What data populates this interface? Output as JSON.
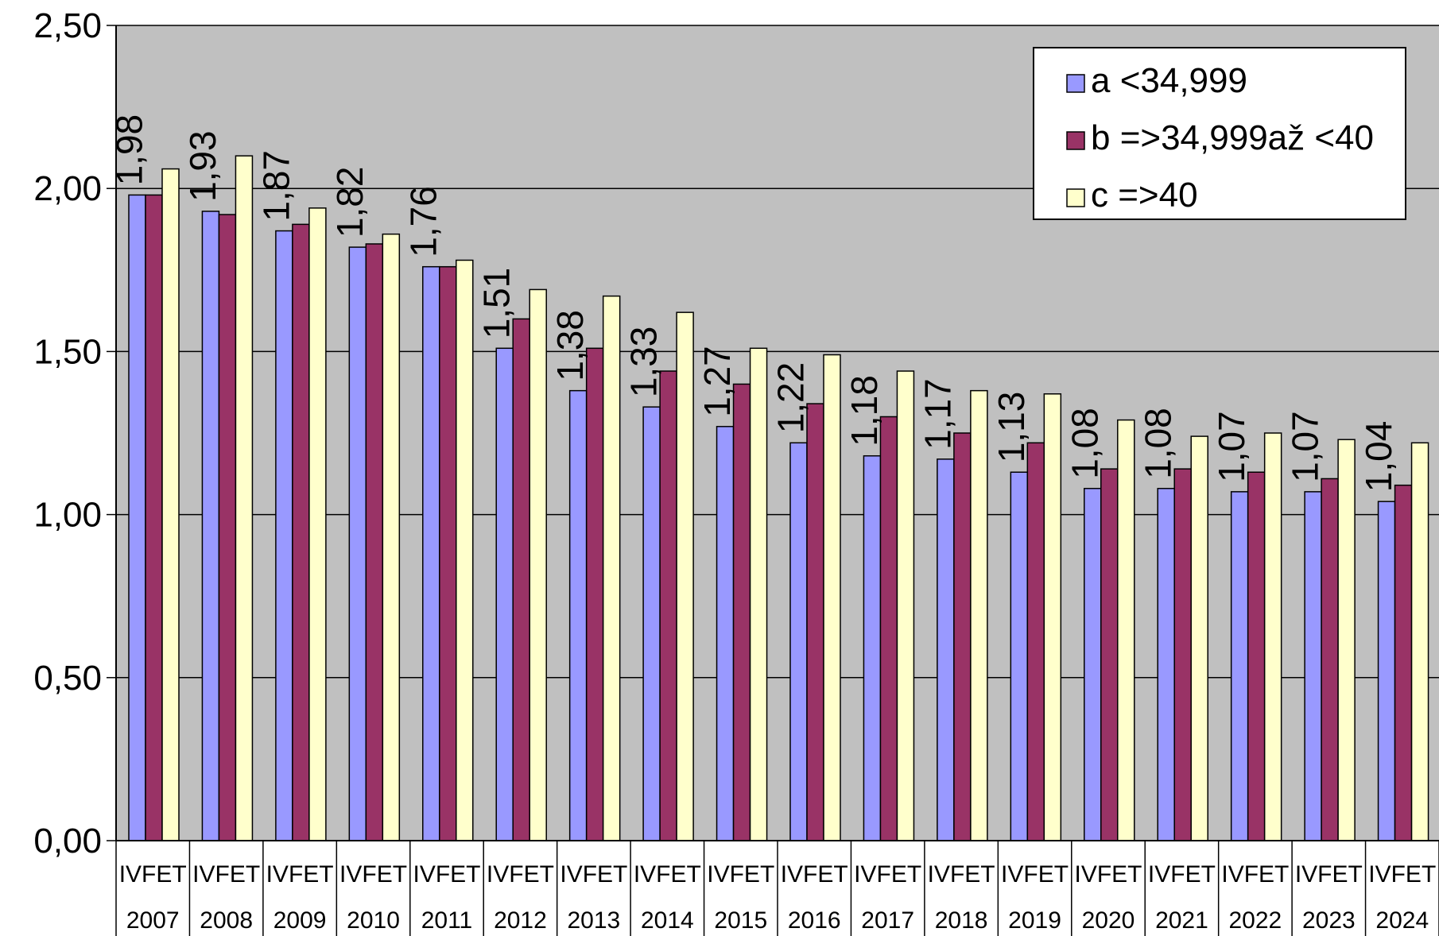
{
  "chart_data": {
    "type": "bar",
    "title": "",
    "xlabel": "",
    "ylabel": "",
    "ylim": [
      0,
      2.5
    ],
    "y_ticks": [
      "0,00",
      "0,50",
      "1,00",
      "1,50",
      "2,00",
      "2,50"
    ],
    "y_tick_values": [
      0,
      0.5,
      1.0,
      1.5,
      2.0,
      2.5
    ],
    "grid": true,
    "legend_position": "top-right",
    "category_labels_top": [
      "IVFET",
      "IVFET",
      "IVFET",
      "IVFET",
      "IVFET",
      "IVFET",
      "IVFET",
      "IVFET",
      "IVFET",
      "IVFET",
      "IVFET",
      "IVFET",
      "IVFET",
      "IVFET",
      "IVFET",
      "IVFET",
      "IVFET",
      "IVFET"
    ],
    "categories": [
      "2007",
      "2008",
      "2009",
      "2010",
      "2011",
      "2012",
      "2013",
      "2014",
      "2015",
      "2016",
      "2017",
      "2018",
      "2019",
      "2020",
      "2021",
      "2022",
      "2023",
      "2024"
    ],
    "series": [
      {
        "name": "a <34,999",
        "color": "#9999ff",
        "values": [
          1.98,
          1.93,
          1.87,
          1.82,
          1.76,
          1.51,
          1.38,
          1.33,
          1.27,
          1.22,
          1.18,
          1.17,
          1.13,
          1.08,
          1.08,
          1.07,
          1.07,
          1.04
        ],
        "data_labels": [
          "1,98",
          "1,93",
          "1,87",
          "1,82",
          "1,76",
          "1,51",
          "1,38",
          "1,33",
          "1,27",
          "1,22",
          "1,18",
          "1,17",
          "1,13",
          "1,08",
          "1,08",
          "1,07",
          "1,07",
          "1,04"
        ]
      },
      {
        "name": "b =>34,999až <40",
        "color": "#993366",
        "values": [
          1.98,
          1.92,
          1.89,
          1.83,
          1.76,
          1.6,
          1.51,
          1.44,
          1.4,
          1.34,
          1.3,
          1.25,
          1.22,
          1.14,
          1.14,
          1.13,
          1.11,
          1.09
        ]
      },
      {
        "name": "c =>40",
        "color": "#ffffcc",
        "values": [
          2.06,
          2.1,
          1.94,
          1.86,
          1.78,
          1.69,
          1.67,
          1.62,
          1.51,
          1.49,
          1.44,
          1.38,
          1.37,
          1.29,
          1.24,
          1.25,
          1.23,
          1.22
        ]
      }
    ]
  }
}
